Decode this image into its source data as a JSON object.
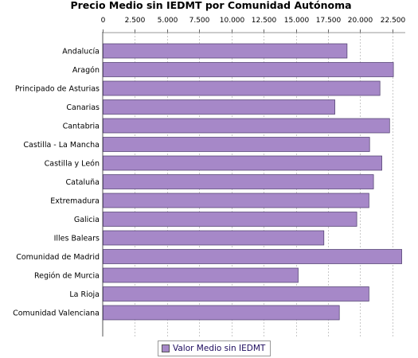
{
  "chart_data": {
    "type": "bar",
    "orientation": "horizontal",
    "title": "Precio Medio sin IEDMT por Comunidad Autónoma",
    "xlabel": "",
    "ylabel": "",
    "xlim": [
      0,
      23500
    ],
    "ticks": [
      0,
      2500,
      5000,
      7500,
      10000,
      12500,
      15000,
      17500,
      20000,
      22500
    ],
    "tick_labels": [
      "0",
      "2.500",
      "5.000",
      "7.500",
      "10.000",
      "12.500",
      "15.000",
      "17.500",
      "20.000",
      "22.500"
    ],
    "axis_position": "top",
    "grid": true,
    "categories": [
      "Andalucía",
      "Aragón",
      "Principado de Asturias",
      "Canarias",
      "Cantabria",
      "Castilla - La Mancha",
      "Castilla y León",
      "Cataluña",
      "Extremadura",
      "Galicia",
      "Illes Balears",
      "Comunidad de Madrid",
      "Región de Murcia",
      "La Rioja",
      "Comunidad Valenciana"
    ],
    "series": [
      {
        "name": "Valor Medio sin IEDMT",
        "color": "#a688c8",
        "values": [
          18950,
          22550,
          21500,
          18000,
          22250,
          20700,
          21650,
          21000,
          20650,
          19700,
          17150,
          23200,
          15150,
          20650,
          18350
        ]
      }
    ],
    "legend_position": "bottom"
  }
}
